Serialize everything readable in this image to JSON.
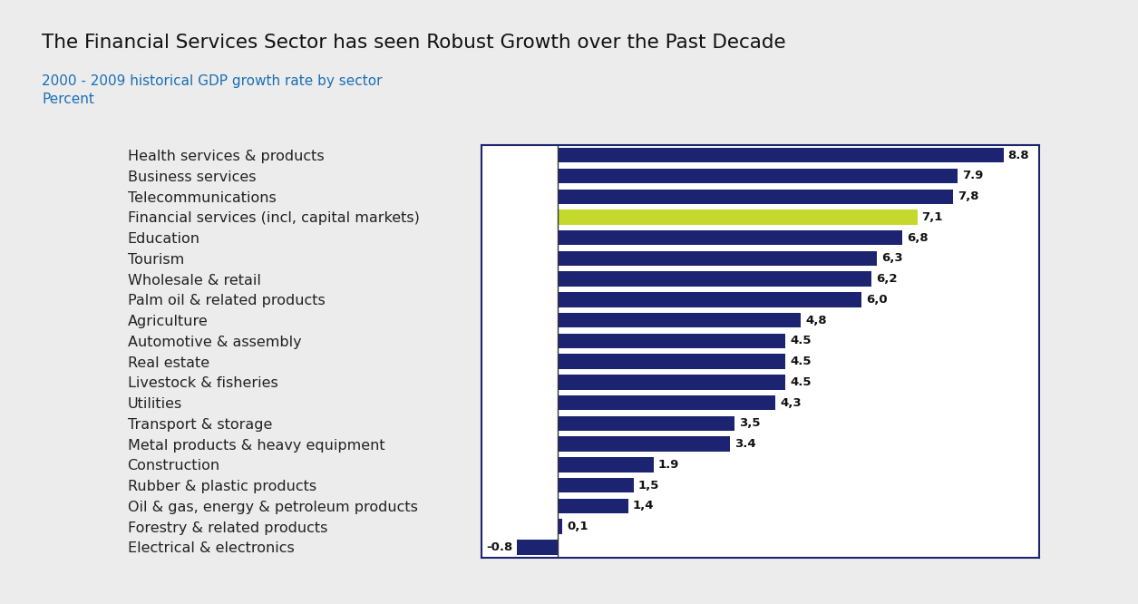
{
  "chart_data": {
    "type": "bar",
    "title": "The Financial Services Sector has seen Robust Growth over the Past Decade",
    "subtitle": "2000 - 2009 historical GDP growth rate by sector",
    "xlabel": "Percent",
    "orientation": "horizontal",
    "data_labels": true,
    "tick_labels": "y",
    "xlim": [
      -1.5,
      9.5
    ],
    "categories": [
      "Health services & products",
      "Business services",
      "Telecommunications",
      "Financial services (incl, capital markets)",
      "Education",
      "Tourism",
      "Wholesale & retail",
      "Palm oil & related products",
      "Agriculture",
      "Automotive & assembly",
      "Real estate",
      "Livestock & fisheries",
      "Utilities",
      "Transport & storage",
      "Metal products & heavy equipment",
      "Construction",
      "Rubber & plastic products",
      "Oil & gas, energy & petroleum products",
      "Forestry & related products",
      "Electrical & electronics"
    ],
    "values": [
      8.8,
      7.9,
      7.8,
      7.1,
      6.8,
      6.3,
      6.2,
      6.0,
      4.8,
      4.5,
      4.5,
      4.5,
      4.3,
      3.5,
      3.4,
      1.9,
      1.5,
      1.4,
      0.1,
      -0.8
    ],
    "value_labels": [
      "8.8",
      "7.9",
      "7,8",
      "7,1",
      "6,8",
      "6,3",
      "6,2",
      "6,0",
      "4,8",
      "4.5",
      "4.5",
      "4.5",
      "4,3",
      "3,5",
      "3.4",
      "1.9",
      "1,5",
      "1,4",
      "0,1",
      "-0.8"
    ],
    "colors": [
      "#1c2472",
      "#1c2472",
      "#1c2472",
      "#c5d92d",
      "#1c2472",
      "#1c2472",
      "#1c2472",
      "#1c2472",
      "#1c2472",
      "#1c2472",
      "#1c2472",
      "#1c2472",
      "#1c2472",
      "#1c2472",
      "#1c2472",
      "#1c2472",
      "#1c2472",
      "#1c2472",
      "#1c2472",
      "#1c2472"
    ]
  }
}
